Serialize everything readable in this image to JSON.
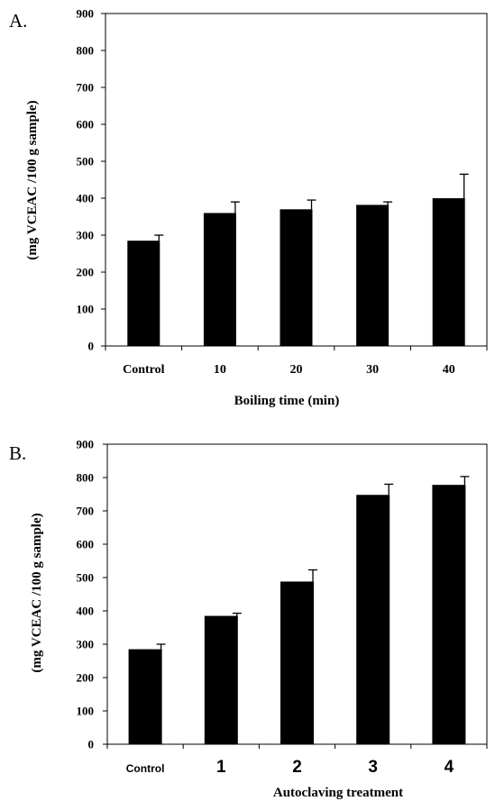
{
  "chart_data": [
    {
      "panel": "A.",
      "type": "bar",
      "categories": [
        "Control",
        "10",
        "20",
        "30",
        "40"
      ],
      "values": [
        285,
        360,
        370,
        382,
        400
      ],
      "errors": [
        15,
        30,
        25,
        8,
        65
      ],
      "xlabel": "Boiling time (min)",
      "ylabel": "(mg VCEAC /100 g sample)",
      "ylim": [
        0,
        900
      ],
      "yticks": [
        0,
        100,
        200,
        300,
        400,
        500,
        600,
        700,
        800,
        900
      ],
      "grid": false,
      "bar_color": "#000000"
    },
    {
      "panel": "B.",
      "type": "bar",
      "categories": [
        "Control",
        "1",
        "2",
        "3",
        "4"
      ],
      "values": [
        285,
        385,
        488,
        748,
        778
      ],
      "errors": [
        15,
        8,
        35,
        32,
        25
      ],
      "xlabel": "Autoclaving treatment",
      "ylabel": "(mg VCEAC /100 g sample)",
      "ylim": [
        0,
        900
      ],
      "yticks": [
        0,
        100,
        200,
        300,
        400,
        500,
        600,
        700,
        800,
        900
      ],
      "grid": false,
      "bar_color": "#000000"
    }
  ]
}
